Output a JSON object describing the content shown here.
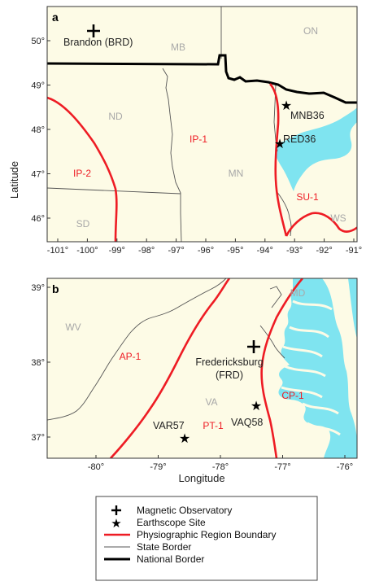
{
  "axis_title_y": "Latitude",
  "axis_title_x": "Longitude",
  "colors": {
    "land": "#fdfbe6",
    "water": "#7fe4f0",
    "region": "#ee1c24",
    "border": "#000000",
    "state_label": "#a8a8a8"
  },
  "panel_a": {
    "letter": "a",
    "x_ticks": [
      "-101°",
      "-100°",
      "-99°",
      "-98°",
      "-97°",
      "-96°",
      "-95°",
      "-94°",
      "-93°",
      "-92°",
      "-91°"
    ],
    "y_ticks": [
      "50°",
      "49°",
      "48°",
      "47°",
      "46°"
    ],
    "states": [
      "MB",
      "ON",
      "ND",
      "MN",
      "SD",
      "WS"
    ],
    "regions": [
      "IP-1",
      "IP-2",
      "SU-1"
    ],
    "observatory": "Brandon (BRD)",
    "sites": [
      "MNB36",
      "RED36"
    ]
  },
  "panel_b": {
    "letter": "b",
    "x_ticks": [
      "-80°",
      "-79°",
      "-78°",
      "-77°",
      "-76°"
    ],
    "y_ticks": [
      "39°",
      "38°",
      "37°"
    ],
    "states": [
      "MD",
      "WV",
      "VA"
    ],
    "regions": [
      "AP-1",
      "CP-1",
      "PT-1"
    ],
    "observatory_line1": "Fredericksburg",
    "observatory_line2": "(FRD)",
    "sites": [
      "VAQ58",
      "VAR57"
    ]
  },
  "legend": {
    "items": [
      {
        "icon": "plus-marker-icon",
        "label": "Magnetic Observatory"
      },
      {
        "icon": "star-marker-icon",
        "label": "Earthscope Site"
      },
      {
        "icon": "red-line-icon",
        "label": "Physiographic Region Boundary"
      },
      {
        "icon": "thin-line-icon",
        "label": "State Border"
      },
      {
        "icon": "thick-line-icon",
        "label": "National Border"
      }
    ]
  }
}
